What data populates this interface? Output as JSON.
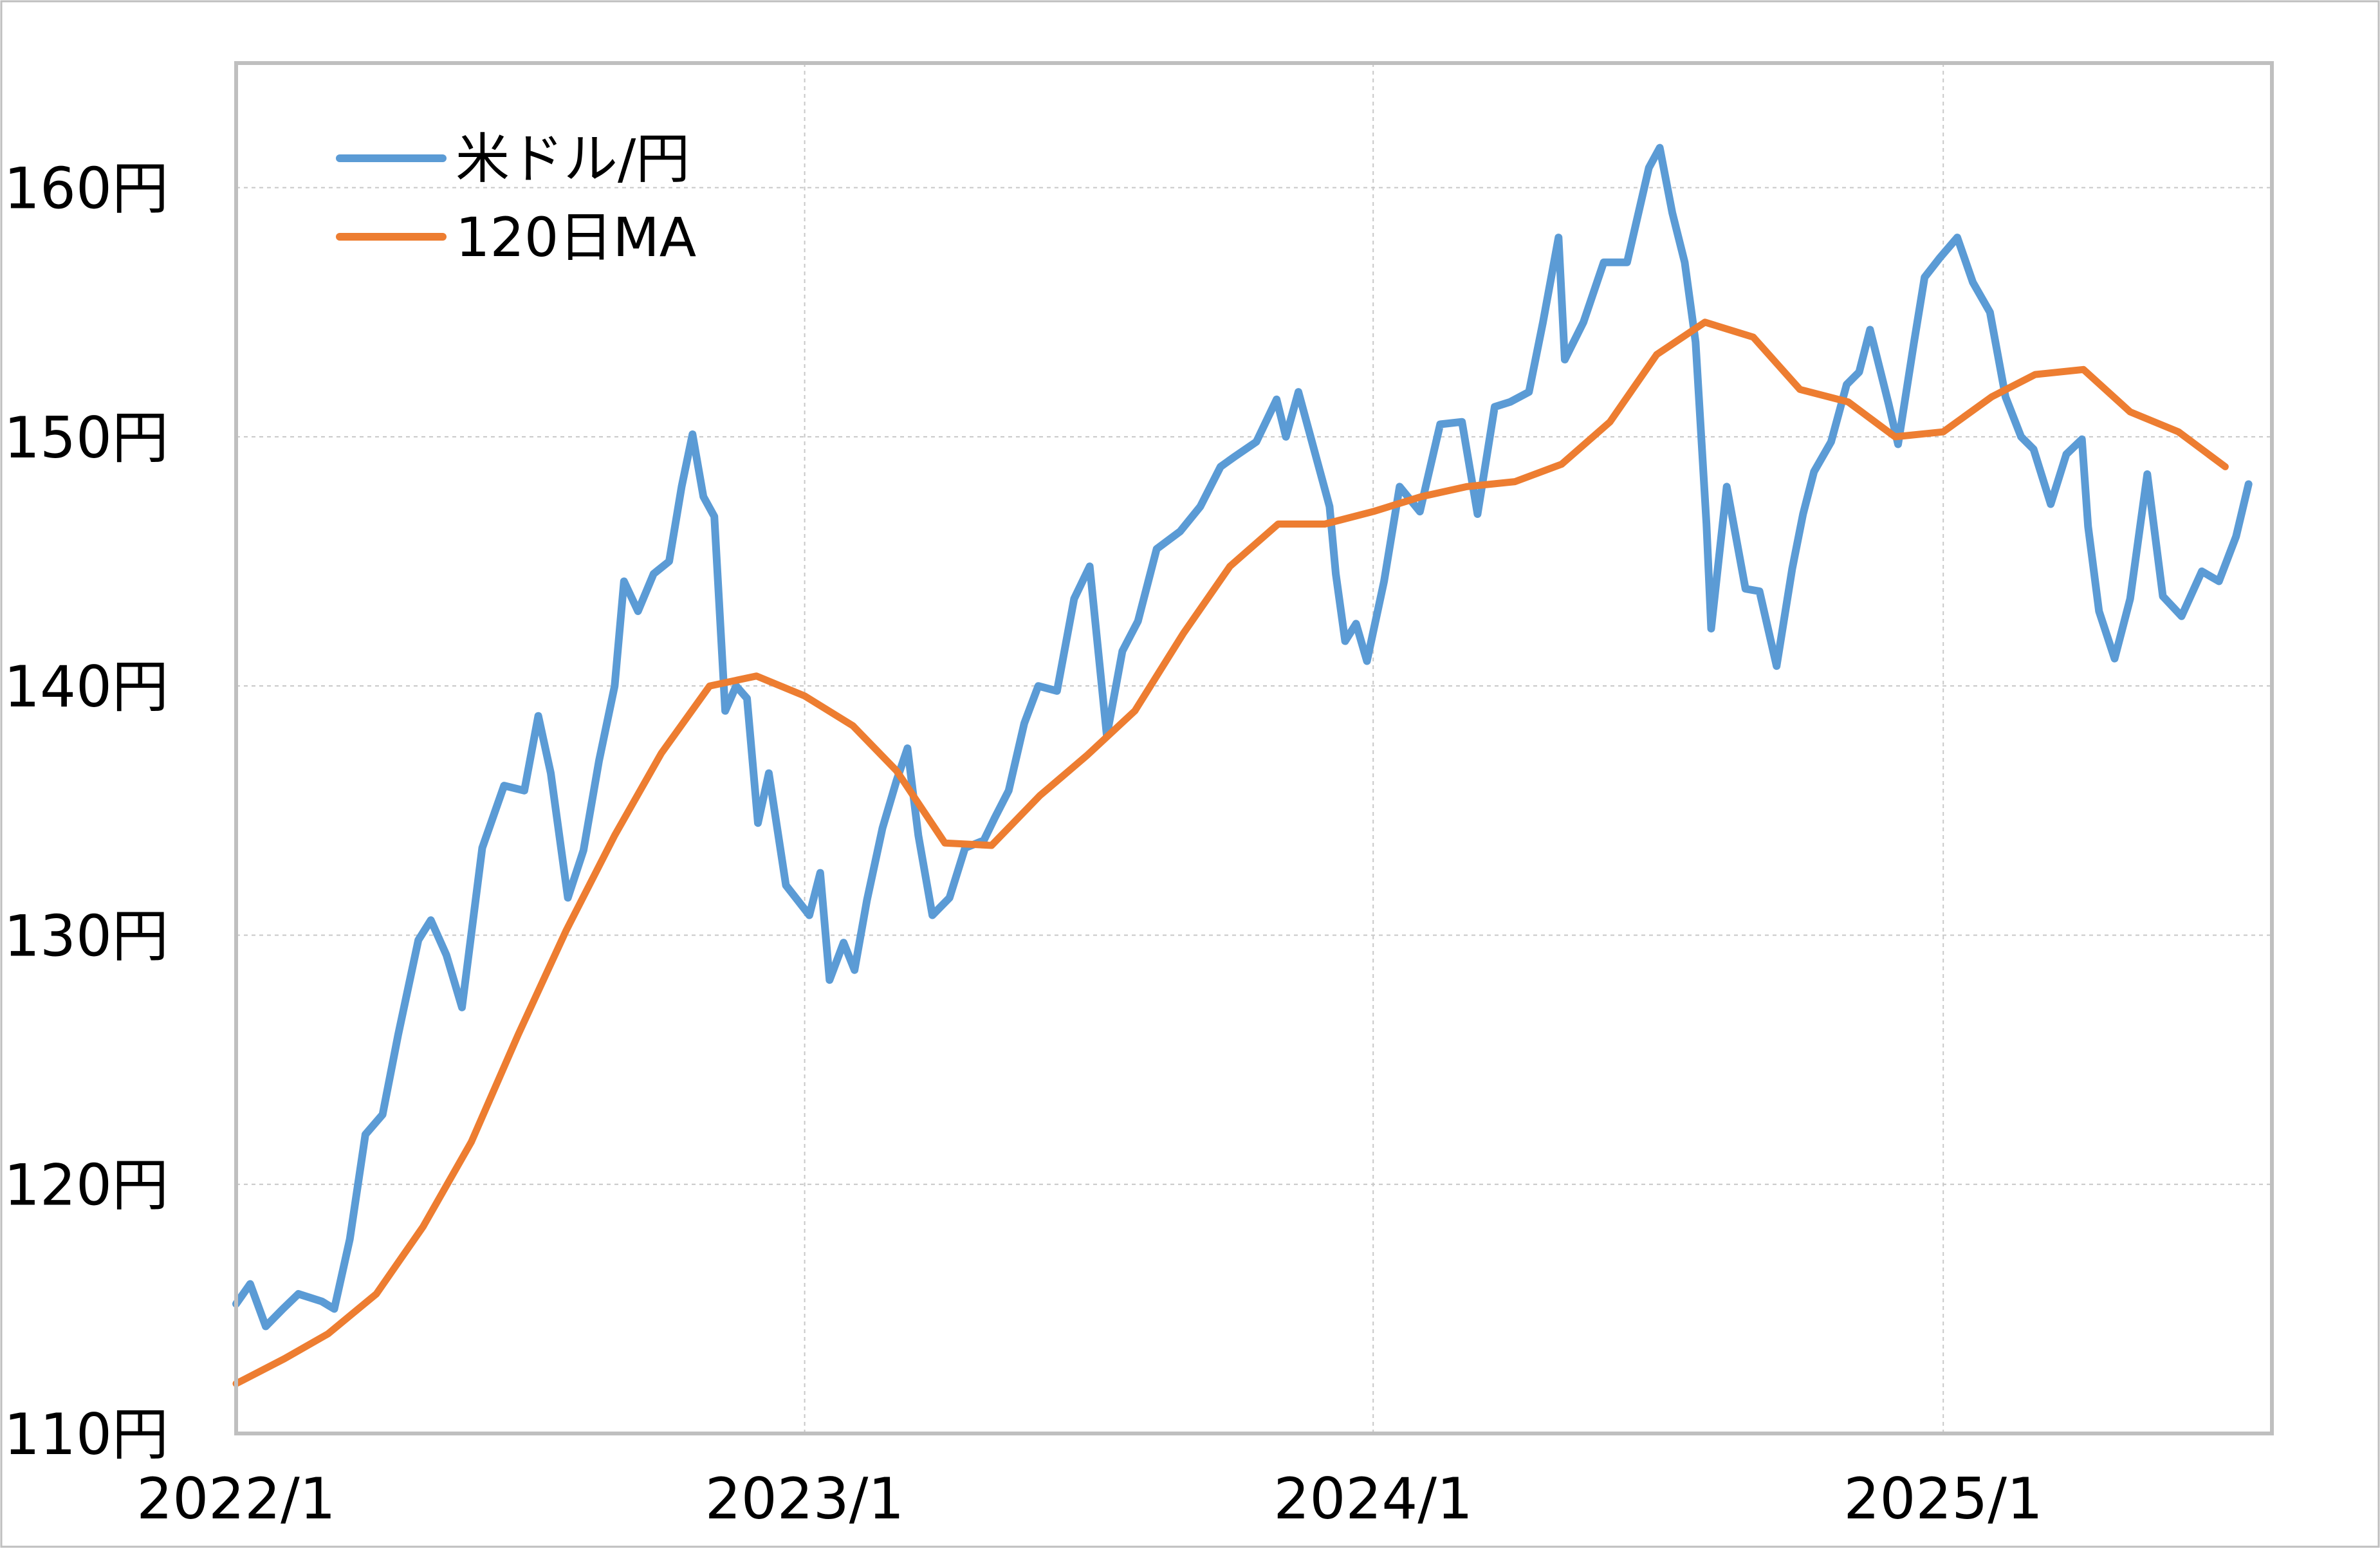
{
  "chart_data": {
    "type": "line",
    "title": "",
    "xlabel": "",
    "ylabel": "",
    "ylim": [
      110,
      165
    ],
    "xlim": [
      "2022-01-01",
      "2025-07-31"
    ],
    "grid": true,
    "legend_position": "top-left",
    "y_ticks": [
      {
        "value": 110,
        "label": "110円"
      },
      {
        "value": 120,
        "label": "120円"
      },
      {
        "value": 130,
        "label": "130円"
      },
      {
        "value": 140,
        "label": "140円"
      },
      {
        "value": 150,
        "label": "150円"
      },
      {
        "value": 160,
        "label": "160円"
      }
    ],
    "x_ticks": [
      {
        "value": "2022-01-01",
        "label": "2022/1"
      },
      {
        "value": "2023-01-01",
        "label": "2023/1"
      },
      {
        "value": "2024-01-01",
        "label": "2024/1"
      },
      {
        "value": "2025-01-01",
        "label": "2025/1"
      }
    ],
    "series": [
      {
        "name": "米ドル/円",
        "color": "#5b9bd5",
        "points": [
          [
            "2022-01-01",
            115.2
          ],
          [
            "2022-01-10",
            116.0
          ],
          [
            "2022-01-20",
            114.3
          ],
          [
            "2022-01-31",
            115.0
          ],
          [
            "2022-02-10",
            115.6
          ],
          [
            "2022-02-25",
            115.3
          ],
          [
            "2022-03-05",
            115.0
          ],
          [
            "2022-03-15",
            117.8
          ],
          [
            "2022-03-25",
            122.0
          ],
          [
            "2022-04-05",
            122.8
          ],
          [
            "2022-04-15",
            126.0
          ],
          [
            "2022-04-28",
            129.8
          ],
          [
            "2022-05-06",
            130.6
          ],
          [
            "2022-05-16",
            129.2
          ],
          [
            "2022-05-26",
            127.1
          ],
          [
            "2022-06-08",
            133.5
          ],
          [
            "2022-06-22",
            136.0
          ],
          [
            "2022-07-05",
            135.8
          ],
          [
            "2022-07-14",
            138.8
          ],
          [
            "2022-07-22",
            136.5
          ],
          [
            "2022-08-02",
            131.5
          ],
          [
            "2022-08-12",
            133.4
          ],
          [
            "2022-08-22",
            137.0
          ],
          [
            "2022-09-01",
            140.0
          ],
          [
            "2022-09-07",
            144.2
          ],
          [
            "2022-09-16",
            143.0
          ],
          [
            "2022-09-26",
            144.5
          ],
          [
            "2022-10-06",
            145.0
          ],
          [
            "2022-10-14",
            148.0
          ],
          [
            "2022-10-21",
            150.1
          ],
          [
            "2022-10-28",
            147.6
          ],
          [
            "2022-11-04",
            146.8
          ],
          [
            "2022-11-11",
            139.0
          ],
          [
            "2022-11-18",
            140.0
          ],
          [
            "2022-11-25",
            139.5
          ],
          [
            "2022-12-02",
            134.5
          ],
          [
            "2022-12-09",
            136.5
          ],
          [
            "2022-12-20",
            132.0
          ],
          [
            "2023-01-04",
            130.8
          ],
          [
            "2023-01-11",
            132.5
          ],
          [
            "2023-01-17",
            128.2
          ],
          [
            "2023-01-26",
            129.7
          ],
          [
            "2023-02-02",
            128.6
          ],
          [
            "2023-02-10",
            131.4
          ],
          [
            "2023-02-20",
            134.3
          ],
          [
            "2023-03-01",
            136.2
          ],
          [
            "2023-03-08",
            137.5
          ],
          [
            "2023-03-15",
            134.0
          ],
          [
            "2023-03-24",
            130.8
          ],
          [
            "2023-04-04",
            131.5
          ],
          [
            "2023-04-14",
            133.5
          ],
          [
            "2023-04-26",
            133.8
          ],
          [
            "2023-05-03",
            134.7
          ],
          [
            "2023-05-12",
            135.8
          ],
          [
            "2023-05-22",
            138.5
          ],
          [
            "2023-05-31",
            140.0
          ],
          [
            "2023-06-12",
            139.8
          ],
          [
            "2023-06-23",
            143.5
          ],
          [
            "2023-07-03",
            144.8
          ],
          [
            "2023-07-14",
            138.0
          ],
          [
            "2023-07-24",
            141.4
          ],
          [
            "2023-08-03",
            142.6
          ],
          [
            "2023-08-15",
            145.5
          ],
          [
            "2023-08-30",
            146.2
          ],
          [
            "2023-09-12",
            147.2
          ],
          [
            "2023-09-25",
            148.8
          ],
          [
            "2023-10-04",
            149.2
          ],
          [
            "2023-10-18",
            149.8
          ],
          [
            "2023-10-31",
            151.5
          ],
          [
            "2023-11-06",
            150.0
          ],
          [
            "2023-11-14",
            151.8
          ],
          [
            "2023-11-24",
            149.5
          ],
          [
            "2023-12-04",
            147.2
          ],
          [
            "2023-12-08",
            144.5
          ],
          [
            "2023-12-14",
            141.8
          ],
          [
            "2023-12-21",
            142.5
          ],
          [
            "2023-12-28",
            141.0
          ],
          [
            "2024-01-08",
            144.2
          ],
          [
            "2024-01-18",
            148.0
          ],
          [
            "2024-01-31",
            147.0
          ],
          [
            "2024-02-13",
            150.5
          ],
          [
            "2024-02-27",
            150.6
          ],
          [
            "2024-03-08",
            146.9
          ],
          [
            "2024-03-19",
            151.2
          ],
          [
            "2024-03-29",
            151.4
          ],
          [
            "2024-04-10",
            151.8
          ],
          [
            "2024-04-19",
            154.6
          ],
          [
            "2024-04-29",
            158.0
          ],
          [
            "2024-05-03",
            153.1
          ],
          [
            "2024-05-15",
            154.6
          ],
          [
            "2024-05-28",
            157.0
          ],
          [
            "2024-06-12",
            157.0
          ],
          [
            "2024-06-26",
            160.8
          ],
          [
            "2024-07-03",
            161.6
          ],
          [
            "2024-07-11",
            159.0
          ],
          [
            "2024-07-19",
            157.0
          ],
          [
            "2024-07-26",
            153.8
          ],
          [
            "2024-08-02",
            146.5
          ],
          [
            "2024-08-05",
            142.3
          ],
          [
            "2024-08-15",
            148.0
          ],
          [
            "2024-08-27",
            143.9
          ],
          [
            "2024-09-05",
            143.8
          ],
          [
            "2024-09-16",
            140.8
          ],
          [
            "2024-09-26",
            144.7
          ],
          [
            "2024-10-03",
            146.9
          ],
          [
            "2024-10-10",
            148.6
          ],
          [
            "2024-10-21",
            149.8
          ],
          [
            "2024-10-31",
            152.1
          ],
          [
            "2024-11-08",
            152.6
          ],
          [
            "2024-11-15",
            154.3
          ],
          [
            "2024-11-27",
            151.3
          ],
          [
            "2024-12-03",
            149.7
          ],
          [
            "2024-12-13",
            153.7
          ],
          [
            "2024-12-20",
            156.4
          ],
          [
            "2024-12-30",
            157.2
          ],
          [
            "2025-01-10",
            158.0
          ],
          [
            "2025-01-20",
            156.2
          ],
          [
            "2025-01-31",
            155.0
          ],
          [
            "2025-02-10",
            151.6
          ],
          [
            "2025-02-20",
            150.0
          ],
          [
            "2025-02-28",
            149.5
          ],
          [
            "2025-03-11",
            147.3
          ],
          [
            "2025-03-21",
            149.3
          ],
          [
            "2025-03-31",
            149.9
          ],
          [
            "2025-04-04",
            146.4
          ],
          [
            "2025-04-11",
            143.0
          ],
          [
            "2025-04-21",
            141.1
          ],
          [
            "2025-05-01",
            143.5
          ],
          [
            "2025-05-12",
            148.5
          ],
          [
            "2025-05-22",
            143.6
          ],
          [
            "2025-06-03",
            142.8
          ],
          [
            "2025-06-16",
            144.6
          ],
          [
            "2025-06-27",
            144.2
          ],
          [
            "2025-07-08",
            146.0
          ],
          [
            "2025-07-16",
            148.1
          ]
        ]
      },
      {
        "name": "120日MA",
        "color": "#ed7d31",
        "points": [
          [
            "2022-01-01",
            112.0
          ],
          [
            "2022-02-01",
            113.0
          ],
          [
            "2022-03-01",
            114.0
          ],
          [
            "2022-04-01",
            115.6
          ],
          [
            "2022-05-01",
            118.3
          ],
          [
            "2022-06-01",
            121.7
          ],
          [
            "2022-07-01",
            126.0
          ],
          [
            "2022-08-01",
            130.2
          ],
          [
            "2022-09-01",
            134.0
          ],
          [
            "2022-10-01",
            137.3
          ],
          [
            "2022-11-01",
            140.0
          ],
          [
            "2022-12-01",
            140.4
          ],
          [
            "2023-01-01",
            139.6
          ],
          [
            "2023-02-01",
            138.4
          ],
          [
            "2023-03-01",
            136.6
          ],
          [
            "2023-04-01",
            133.7
          ],
          [
            "2023-05-01",
            133.6
          ],
          [
            "2023-06-01",
            135.6
          ],
          [
            "2023-07-01",
            137.2
          ],
          [
            "2023-08-01",
            139.0
          ],
          [
            "2023-09-01",
            142.1
          ],
          [
            "2023-10-01",
            144.8
          ],
          [
            "2023-11-01",
            146.5
          ],
          [
            "2023-12-01",
            146.5
          ],
          [
            "2024-01-01",
            147.0
          ],
          [
            "2024-02-01",
            147.6
          ],
          [
            "2024-03-01",
            148.0
          ],
          [
            "2024-04-01",
            148.2
          ],
          [
            "2024-05-01",
            148.9
          ],
          [
            "2024-06-01",
            150.6
          ],
          [
            "2024-07-01",
            153.3
          ],
          [
            "2024-08-01",
            154.6
          ],
          [
            "2024-09-01",
            154.0
          ],
          [
            "2024-10-01",
            151.9
          ],
          [
            "2024-11-01",
            151.4
          ],
          [
            "2024-12-01",
            150.0
          ],
          [
            "2025-01-01",
            150.2
          ],
          [
            "2025-02-01",
            151.6
          ],
          [
            "2025-03-01",
            152.5
          ],
          [
            "2025-04-01",
            152.7
          ],
          [
            "2025-05-01",
            151.0
          ],
          [
            "2025-06-01",
            150.2
          ],
          [
            "2025-07-01",
            148.8
          ]
        ]
      }
    ]
  },
  "legend": {
    "items": [
      {
        "label": "米ドル/円",
        "color": "#5b9bd5"
      },
      {
        "label": "120日MA",
        "color": "#ed7d31"
      }
    ]
  },
  "colors": {
    "grid": "#c8c8c8",
    "frame": "#bfbfbf",
    "text": "#000000"
  }
}
